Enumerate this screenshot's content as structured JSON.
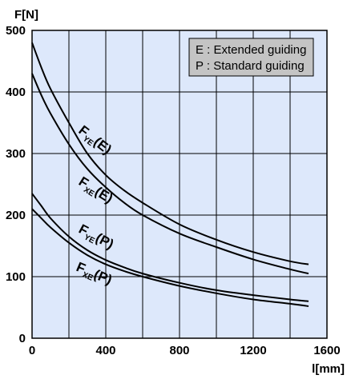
{
  "chart_data": {
    "type": "line",
    "ylabel": "F[N]",
    "xlabel": "l[mm]",
    "xlim": [
      0,
      1600
    ],
    "ylim": [
      0,
      500
    ],
    "x_major_ticks": [
      0,
      400,
      800,
      1200,
      1600
    ],
    "x_grid": [
      0,
      200,
      400,
      600,
      800,
      1000,
      1200,
      1400,
      1600
    ],
    "y_major_ticks": [
      0,
      100,
      200,
      300,
      400,
      500
    ],
    "grid": true,
    "background": "#dde8fb",
    "legend": {
      "placement": "top-right",
      "entries": [
        "E : Extended guiding",
        "P : Standard guiding"
      ],
      "fill": "#c4c4c4"
    },
    "series": [
      {
        "name": "FYE(E)",
        "label_main": "F",
        "label_sub": "YE",
        "label_suffix": "(E)",
        "x": [
          0,
          50,
          100,
          200,
          300,
          400,
          500,
          600,
          800,
          1000,
          1200,
          1400,
          1500
        ],
        "y": [
          480,
          440,
          405,
          350,
          300,
          265,
          240,
          220,
          185,
          160,
          140,
          125,
          120
        ]
      },
      {
        "name": "FXE(E)",
        "label_main": "F",
        "label_sub": "XE",
        "label_suffix": "(E)",
        "x": [
          0,
          50,
          100,
          200,
          300,
          400,
          500,
          600,
          800,
          1000,
          1200,
          1400,
          1500
        ],
        "y": [
          430,
          395,
          365,
          315,
          275,
          245,
          220,
          200,
          170,
          148,
          128,
          112,
          105
        ]
      },
      {
        "name": "FYE(P)",
        "label_main": "F",
        "label_sub": "YE",
        "label_suffix": "(P)",
        "x": [
          0,
          50,
          100,
          200,
          300,
          400,
          500,
          600,
          800,
          1000,
          1200,
          1400,
          1500
        ],
        "y": [
          235,
          215,
          195,
          165,
          143,
          127,
          115,
          105,
          90,
          78,
          70,
          63,
          60
        ]
      },
      {
        "name": "FXE(P)",
        "label_main": "F",
        "label_sub": "XE",
        "label_suffix": "(P)",
        "x": [
          0,
          50,
          100,
          200,
          300,
          400,
          500,
          600,
          800,
          1000,
          1200,
          1400,
          1500
        ],
        "y": [
          210,
          195,
          180,
          155,
          135,
          120,
          109,
          100,
          85,
          73,
          63,
          56,
          52
        ]
      }
    ]
  }
}
